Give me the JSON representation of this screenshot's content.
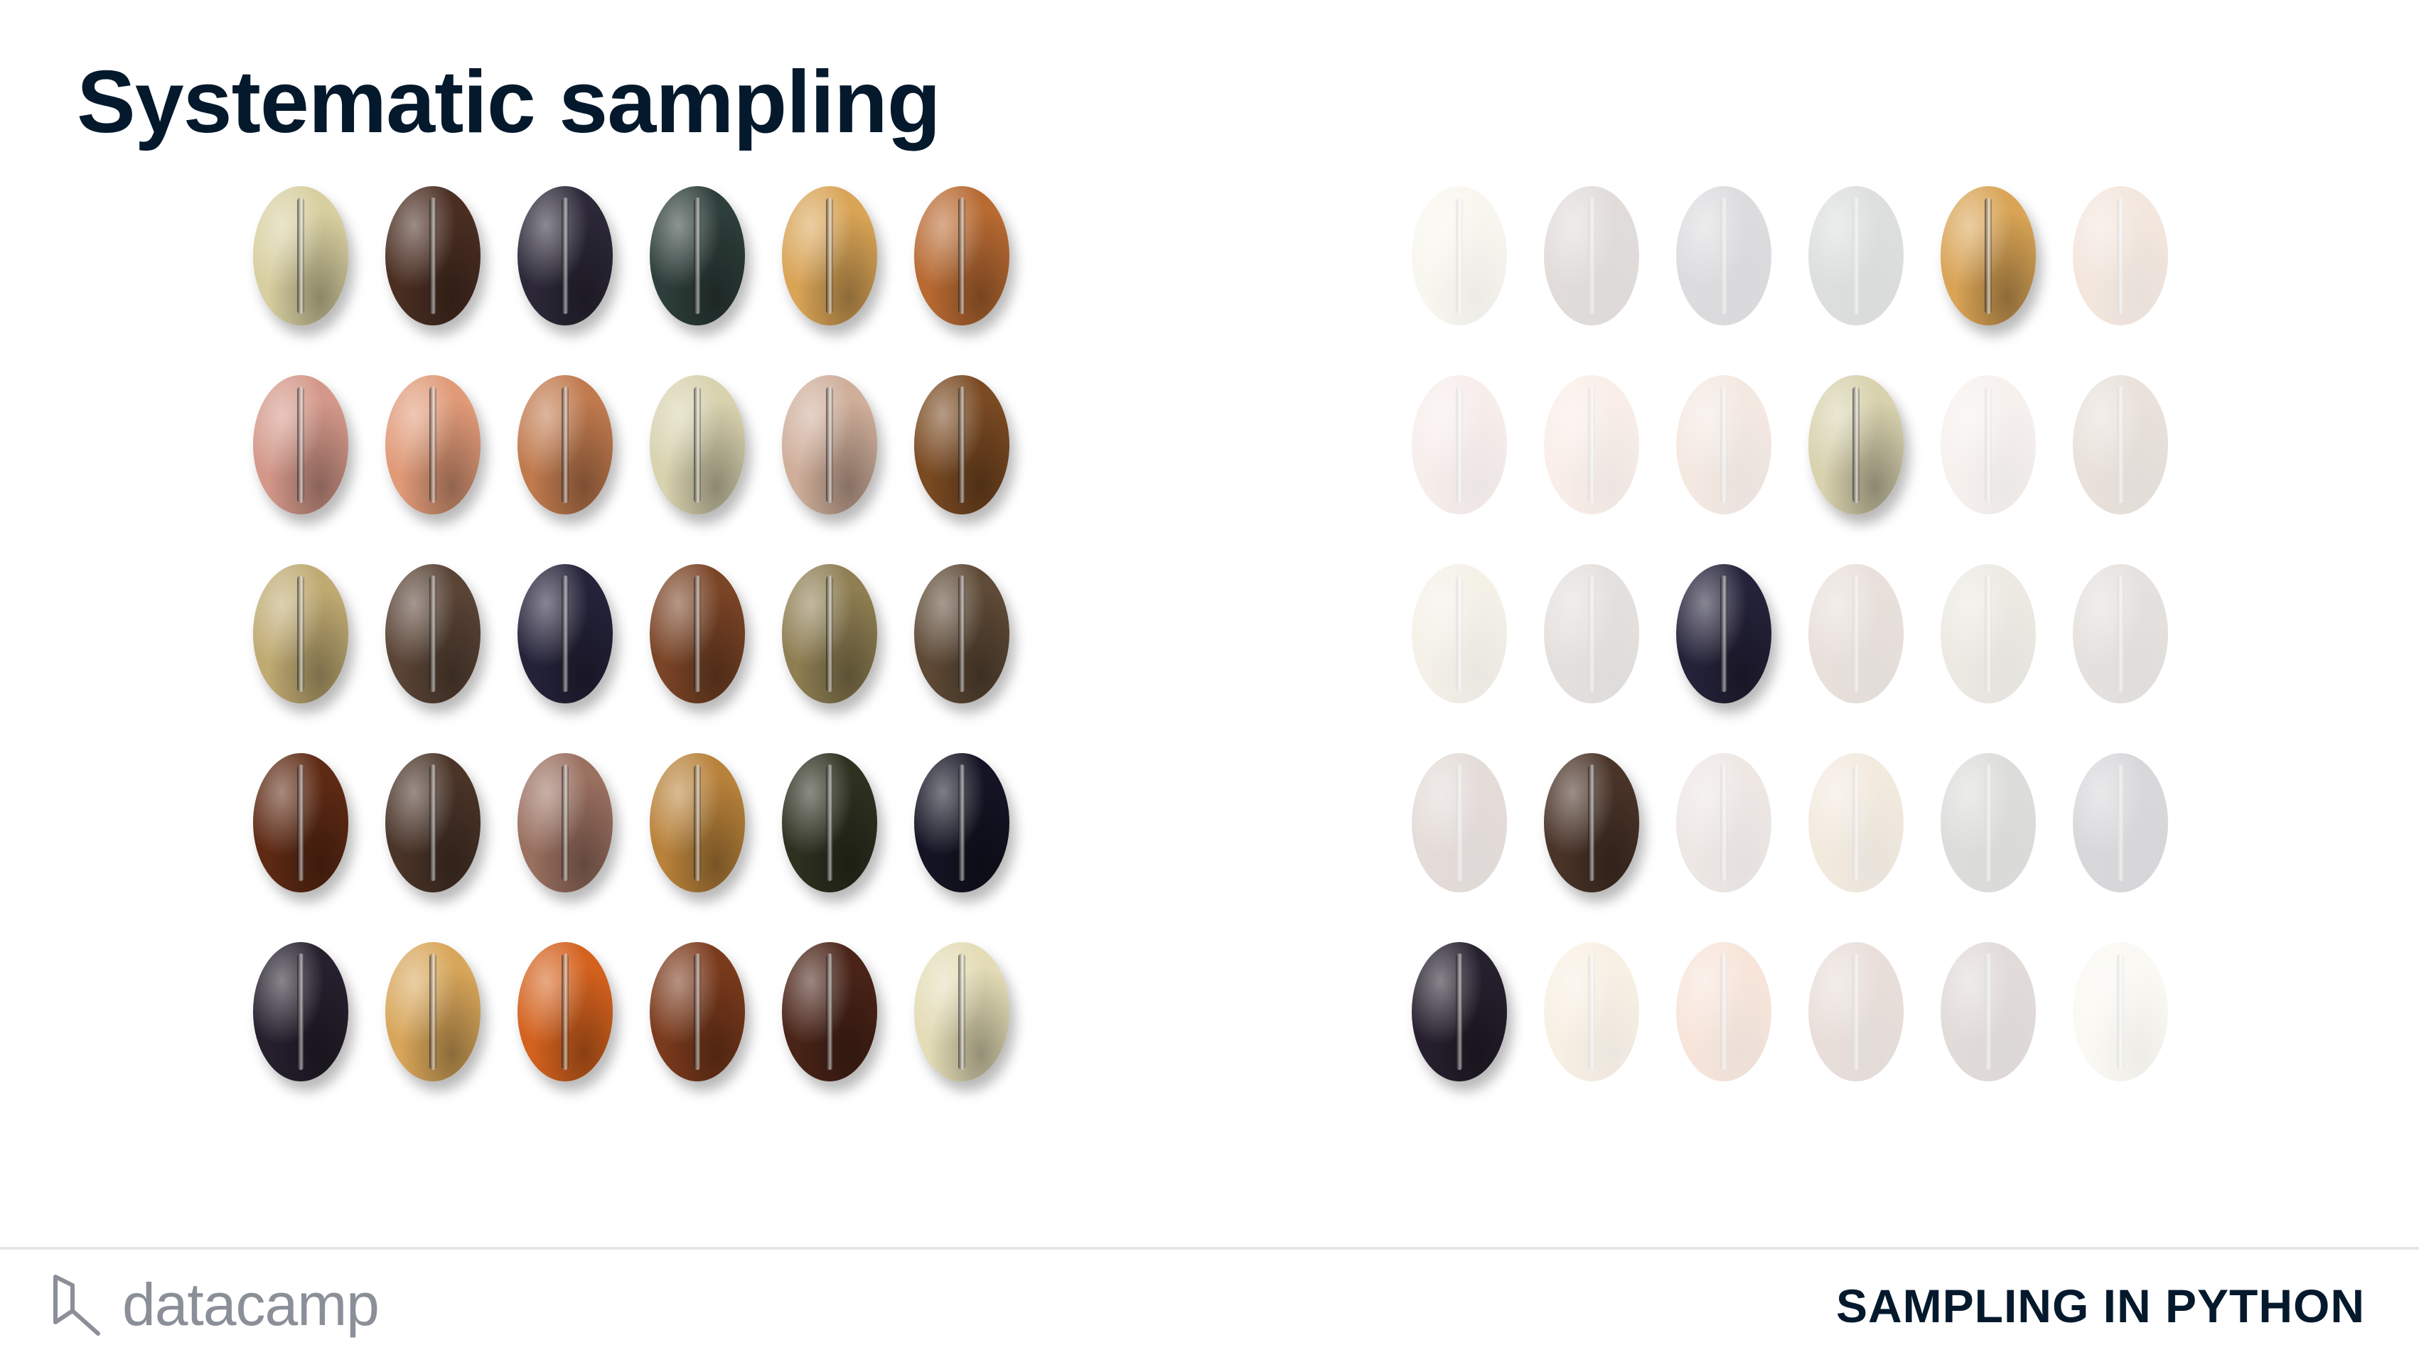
{
  "slide": {
    "title": "Systematic sampling"
  },
  "population": {
    "rows": 5,
    "cols": 6,
    "bean_colors": [
      "#d8cfa0",
      "#4a2e22",
      "#2c2838",
      "#2e3e3a",
      "#d9a456",
      "#b86a32",
      "#d4988a",
      "#e09a78",
      "#c07a4e",
      "#d8d2ae",
      "#cfae9a",
      "#7a4a22",
      "#bfaa72",
      "#5a4436",
      "#25233a",
      "#7a4426",
      "#8e7e52",
      "#5e4a36",
      "#5e2a14",
      "#4a3428",
      "#9a7060",
      "#b8823a",
      "#2e3020",
      "#141424",
      "#26202e",
      "#d8a65a",
      "#d4621e",
      "#7a3a1c",
      "#4a2418",
      "#e4dcb6"
    ]
  },
  "sample": {
    "selected_indices": [
      4,
      9,
      14,
      19,
      24
    ]
  },
  "footer": {
    "brand": "datacamp",
    "course": "SAMPLING IN PYTHON"
  }
}
